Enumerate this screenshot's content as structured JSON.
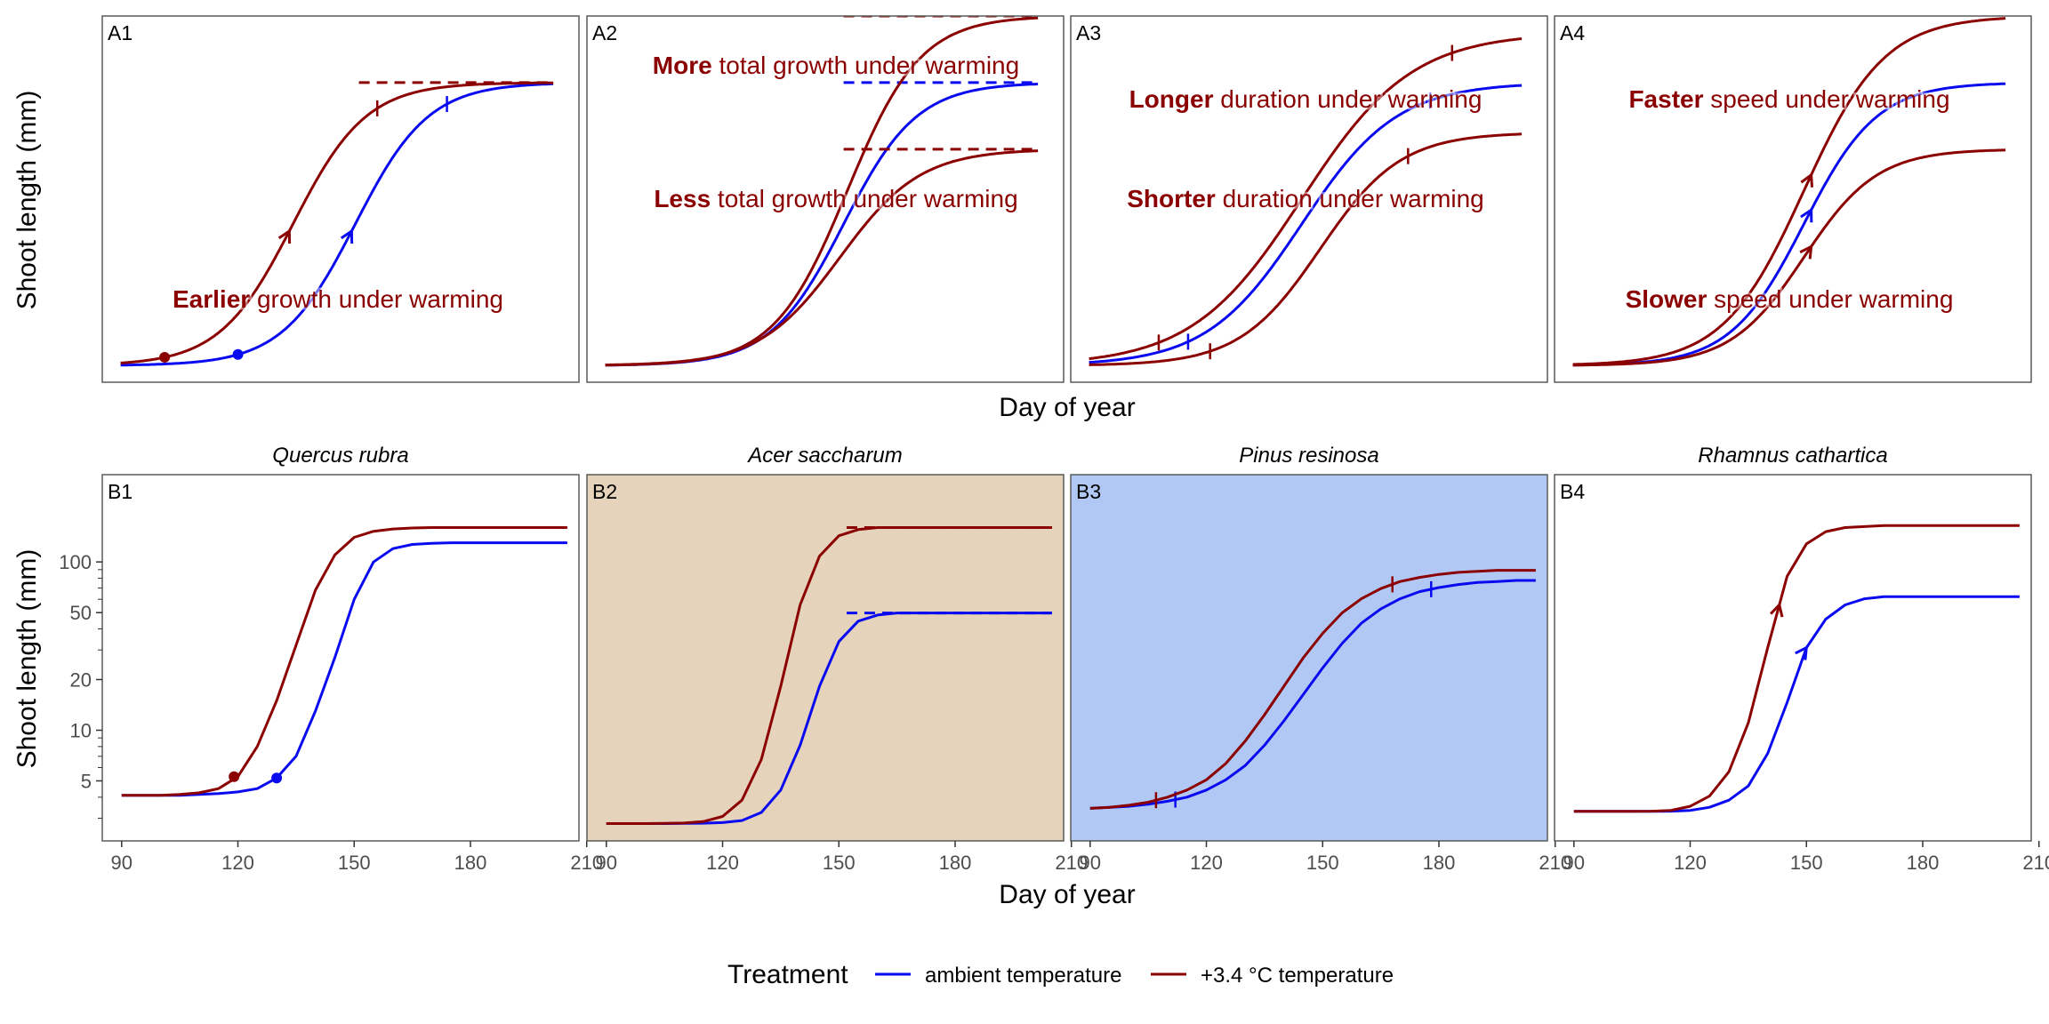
{
  "colors": {
    "ambient": "#0a0af0",
    "warm": "#8b0000",
    "panel_border": "#5a5a5a",
    "tan_bg": "#e6d3bb",
    "blue_bg": "#b1c8f4",
    "axis_text": "#4d4d4d"
  },
  "figure": {
    "top_ylabel": "Shoot length (mm)",
    "top_xlabel": "Day of year",
    "bottom_ylabel": "Shoot length (mm)",
    "bottom_xlabel": "Day of year",
    "legend": {
      "title": "Treatment",
      "items": [
        {
          "key": "ambient",
          "label": "ambient temperature"
        },
        {
          "key": "warm",
          "label": "+3.4 °C temperature"
        }
      ]
    }
  },
  "chart_data": [
    {
      "id": "A1",
      "type": "line",
      "title": "",
      "xlabel": "Day of year",
      "ylabel": "Shoot length (mm)",
      "xlim": [
        80,
        210
      ],
      "ylim": [
        0,
        1.1
      ],
      "annotations": [
        {
          "bold": "Earlier",
          "text": " growth under warming",
          "color": "warm"
        }
      ],
      "series": [
        {
          "name": "ambient temperature",
          "color": "ambient",
          "curve": {
            "lower": 0.05,
            "upper": 0.9,
            "mid": 149,
            "scale": 10
          },
          "x": [
            85,
            203
          ],
          "point": 117,
          "arrow": 148,
          "tick": 174
        },
        {
          "name": "+3.4 °C temperature",
          "color": "warm",
          "curve": {
            "lower": 0.05,
            "upper": 0.9,
            "mid": 132,
            "scale": 10
          },
          "x": [
            85,
            203
          ],
          "point": 97,
          "arrow": 131,
          "tick": 155,
          "hline": {
            "y": 0.9,
            "x": [
              150,
              203
            ]
          }
        }
      ]
    },
    {
      "id": "A2",
      "type": "line",
      "title": "",
      "xlabel": "Day of year",
      "ylabel": "Shoot length (mm)",
      "xlim": [
        80,
        210
      ],
      "ylim": [
        0,
        1.1
      ],
      "annotations": [
        {
          "bold": "More",
          "text": " total growth under warming",
          "color": "warm"
        },
        {
          "bold": "Less",
          "text": " total growth under warming",
          "color": "warm"
        }
      ],
      "series": [
        {
          "name": "ambient temperature",
          "color": "ambient",
          "curve": {
            "lower": 0.05,
            "upper": 0.9,
            "mid": 150,
            "scale": 10
          },
          "x": [
            85,
            203
          ],
          "hline": {
            "y": 0.9,
            "x": [
              150,
              203
            ]
          }
        },
        {
          "name": "+3.4 °C temperature (more)",
          "color": "warm",
          "curve": {
            "lower": 0.05,
            "upper": 1.1,
            "mid": 151,
            "scale": 10
          },
          "x": [
            85,
            203
          ],
          "hline": {
            "y": 1.1,
            "x": [
              150,
              203
            ]
          }
        },
        {
          "name": "+3.4 °C temperature (less)",
          "color": "warm",
          "curve": {
            "lower": 0.05,
            "upper": 0.7,
            "mid": 149,
            "scale": 11
          },
          "x": [
            85,
            203
          ],
          "hline": {
            "y": 0.7,
            "x": [
              150,
              203
            ]
          }
        }
      ]
    },
    {
      "id": "A3",
      "type": "line",
      "title": "",
      "xlabel": "Day of year",
      "ylabel": "Shoot length (mm)",
      "xlim": [
        80,
        210
      ],
      "ylim": [
        0,
        1.1
      ],
      "annotations": [
        {
          "bold": "Longer",
          "text": " duration under warming",
          "color": "warm"
        },
        {
          "bold": "Shorter",
          "text": " duration under warming",
          "color": "warm"
        }
      ],
      "series": [
        {
          "name": "ambient temperature",
          "color": "ambient",
          "curve": {
            "lower": 0.05,
            "upper": 0.9,
            "mid": 143,
            "scale": 13
          },
          "x": [
            85,
            203
          ],
          "tick_start": 112,
          "tick_end": 178
        },
        {
          "name": "+3.4 °C temperature (longer)",
          "color": "warm",
          "curve": {
            "lower": 0.05,
            "upper": 1.05,
            "mid": 143,
            "scale": 15
          },
          "x": [
            85,
            203
          ],
          "tick_start": 104,
          "tick_end": 184
        },
        {
          "name": "+3.4 °C temperature (shorter)",
          "color": "warm",
          "curve": {
            "lower": 0.05,
            "upper": 0.75,
            "mid": 148,
            "scale": 11
          },
          "x": [
            85,
            203
          ],
          "tick_start": 118,
          "tick_end": 172
        }
      ]
    },
    {
      "id": "A4",
      "type": "line",
      "title": "",
      "xlabel": "Day of year",
      "ylabel": "Shoot length (mm)",
      "xlim": [
        80,
        210
      ],
      "ylim": [
        0,
        1.1
      ],
      "annotations": [
        {
          "bold": "Faster",
          "text": " speed under warming",
          "color": "warm"
        },
        {
          "bold": "Slower",
          "text": " speed under warming",
          "color": "warm"
        }
      ],
      "series": [
        {
          "name": "ambient temperature",
          "color": "ambient",
          "curve": {
            "lower": 0.05,
            "upper": 0.9,
            "mid": 148,
            "scale": 10
          },
          "x": [
            85,
            203
          ],
          "arrow": 150
        },
        {
          "name": "+3.4 °C temperature (faster)",
          "color": "warm",
          "curve": {
            "lower": 0.05,
            "upper": 1.1,
            "mid": 148,
            "scale": 11
          },
          "x": [
            85,
            203
          ],
          "arrow": 150
        },
        {
          "name": "+3.4 °C temperature (slower)",
          "color": "warm",
          "curve": {
            "lower": 0.05,
            "upper": 0.7,
            "mid": 148,
            "scale": 10
          },
          "x": [
            85,
            203
          ],
          "arrow": 150
        }
      ]
    },
    {
      "id": "B1",
      "type": "line",
      "title": "Quercus rubra",
      "xlabel": "Day of year",
      "ylabel": "Shoot length (mm)",
      "xlim": [
        85,
        208
      ],
      "ylim": [
        2.2,
        330
      ],
      "yscale": "log",
      "yticks": [
        5,
        10,
        20,
        50,
        100
      ],
      "series": [
        {
          "name": "ambient temperature",
          "color": "ambient",
          "x": [
            90,
            95,
            100,
            105,
            110,
            115,
            120,
            125,
            130,
            135,
            140,
            145,
            150,
            155,
            160,
            165,
            170,
            175,
            180,
            185,
            190,
            195,
            200,
            205
          ],
          "y": [
            4.1,
            4.1,
            4.1,
            4.1,
            4.15,
            4.2,
            4.3,
            4.5,
            5.2,
            7,
            13,
            27,
            60,
            100,
            120,
            127,
            129,
            130,
            130,
            130,
            130,
            130,
            130,
            130
          ],
          "point": [
            130,
            5.2
          ]
        },
        {
          "name": "+3.4 °C temperature",
          "color": "warm",
          "x": [
            90,
            95,
            100,
            105,
            110,
            115,
            120,
            125,
            130,
            135,
            140,
            145,
            150,
            155,
            160,
            165,
            170,
            175,
            180,
            185,
            190,
            195,
            200,
            205
          ],
          "y": [
            4.1,
            4.1,
            4.1,
            4.15,
            4.25,
            4.5,
            5.3,
            8,
            15,
            32,
            68,
            110,
            140,
            152,
            157,
            159,
            160,
            160,
            160,
            160,
            160,
            160,
            160,
            160
          ],
          "point": [
            119,
            5.3
          ]
        }
      ]
    },
    {
      "id": "B2",
      "type": "line",
      "title": "Acer saccharum",
      "xlabel": "Day of year",
      "ylabel": "Shoot length (mm)",
      "xlim": [
        85,
        208
      ],
      "ylim": [
        0,
        180
      ],
      "background": "tan_bg",
      "series": [
        {
          "name": "ambient temperature",
          "color": "ambient",
          "x": [
            90,
            95,
            100,
            105,
            110,
            115,
            120,
            125,
            130,
            135,
            140,
            145,
            150,
            155,
            160,
            165,
            170,
            175,
            180,
            185,
            190,
            195,
            200,
            205
          ],
          "y": [
            8.5,
            8.5,
            8.5,
            8.5,
            8.6,
            8.7,
            9,
            10,
            14,
            25,
            47,
            76,
            98,
            108,
            111,
            112,
            112,
            112,
            112,
            112,
            112,
            112,
            112,
            112
          ],
          "hline": {
            "y": 112,
            "x": [
              152,
              205
            ]
          }
        },
        {
          "name": "+3.4 °C temperature",
          "color": "warm",
          "x": [
            90,
            95,
            100,
            105,
            110,
            115,
            120,
            125,
            130,
            135,
            140,
            145,
            150,
            155,
            160,
            165,
            170,
            175,
            180,
            185,
            190,
            195,
            200,
            205
          ],
          "y": [
            8.5,
            8.5,
            8.5,
            8.6,
            8.8,
            9.5,
            12,
            20,
            40,
            76,
            116,
            140,
            150,
            153,
            154,
            154,
            154,
            154,
            154,
            154,
            154,
            154,
            154,
            154
          ],
          "hline": {
            "y": 154,
            "x": [
              152,
              205
            ]
          }
        }
      ]
    },
    {
      "id": "B3",
      "type": "line",
      "title": "Pinus resinosa",
      "xlabel": "Day of year",
      "ylabel": "Shoot length (mm)",
      "xlim": [
        85,
        208
      ],
      "ylim": [
        0,
        180
      ],
      "background": "blue_bg",
      "series": [
        {
          "name": "ambient temperature",
          "color": "ambient",
          "x": [
            90,
            95,
            100,
            105,
            110,
            115,
            120,
            125,
            130,
            135,
            140,
            145,
            150,
            155,
            160,
            165,
            170,
            175,
            180,
            185,
            190,
            195,
            200,
            205
          ],
          "y": [
            16,
            16.5,
            17,
            18,
            19.5,
            21.5,
            25,
            30,
            37,
            47,
            59,
            72,
            85,
            97,
            107,
            114,
            119,
            122.5,
            124.5,
            126,
            127,
            127.5,
            128,
            128
          ],
          "tick_start": 112,
          "tick_end": 178
        },
        {
          "name": "+3.4 °C temperature",
          "color": "warm",
          "x": [
            90,
            95,
            100,
            105,
            110,
            115,
            120,
            125,
            130,
            135,
            140,
            145,
            150,
            155,
            160,
            165,
            170,
            175,
            180,
            185,
            190,
            195,
            200,
            205
          ],
          "y": [
            16,
            16.5,
            17.5,
            19,
            21.5,
            25,
            30,
            38,
            49,
            62,
            76,
            90,
            102,
            112,
            119,
            124,
            127.5,
            129.5,
            131,
            132,
            132.5,
            133,
            133,
            133
          ],
          "tick_start": 107,
          "tick_end": 168
        }
      ]
    },
    {
      "id": "B4",
      "type": "line",
      "title": "Rhamnus cathartica",
      "xlabel": "Day of year",
      "ylabel": "Shoot length (mm)",
      "xlim": [
        85,
        208
      ],
      "ylim": [
        0,
        180
      ],
      "series": [
        {
          "name": "ambient temperature",
          "color": "ambient",
          "x": [
            90,
            95,
            100,
            105,
            110,
            115,
            120,
            125,
            130,
            135,
            140,
            145,
            150,
            155,
            160,
            165,
            170,
            175,
            180,
            185,
            190,
            195,
            200,
            205
          ],
          "y": [
            14.5,
            14.5,
            14.5,
            14.5,
            14.5,
            14.6,
            15,
            16.5,
            20,
            27,
            43,
            68,
            95,
            109,
            116,
            119,
            120,
            120,
            120,
            120,
            120,
            120,
            120,
            120
          ],
          "arrow": 150
        },
        {
          "name": "+3.4 °C temperature",
          "color": "warm",
          "x": [
            90,
            95,
            100,
            105,
            110,
            115,
            120,
            125,
            130,
            135,
            140,
            145,
            150,
            155,
            160,
            165,
            170,
            175,
            180,
            185,
            190,
            195,
            200,
            205
          ],
          "y": [
            14.5,
            14.5,
            14.5,
            14.5,
            14.6,
            15,
            17,
            22,
            34,
            58,
            95,
            130,
            146,
            152,
            154,
            154.5,
            155,
            155,
            155,
            155,
            155,
            155,
            155,
            155
          ],
          "arrow": 143
        }
      ]
    }
  ],
  "x_ticks": [
    90,
    120,
    150,
    180,
    210
  ]
}
